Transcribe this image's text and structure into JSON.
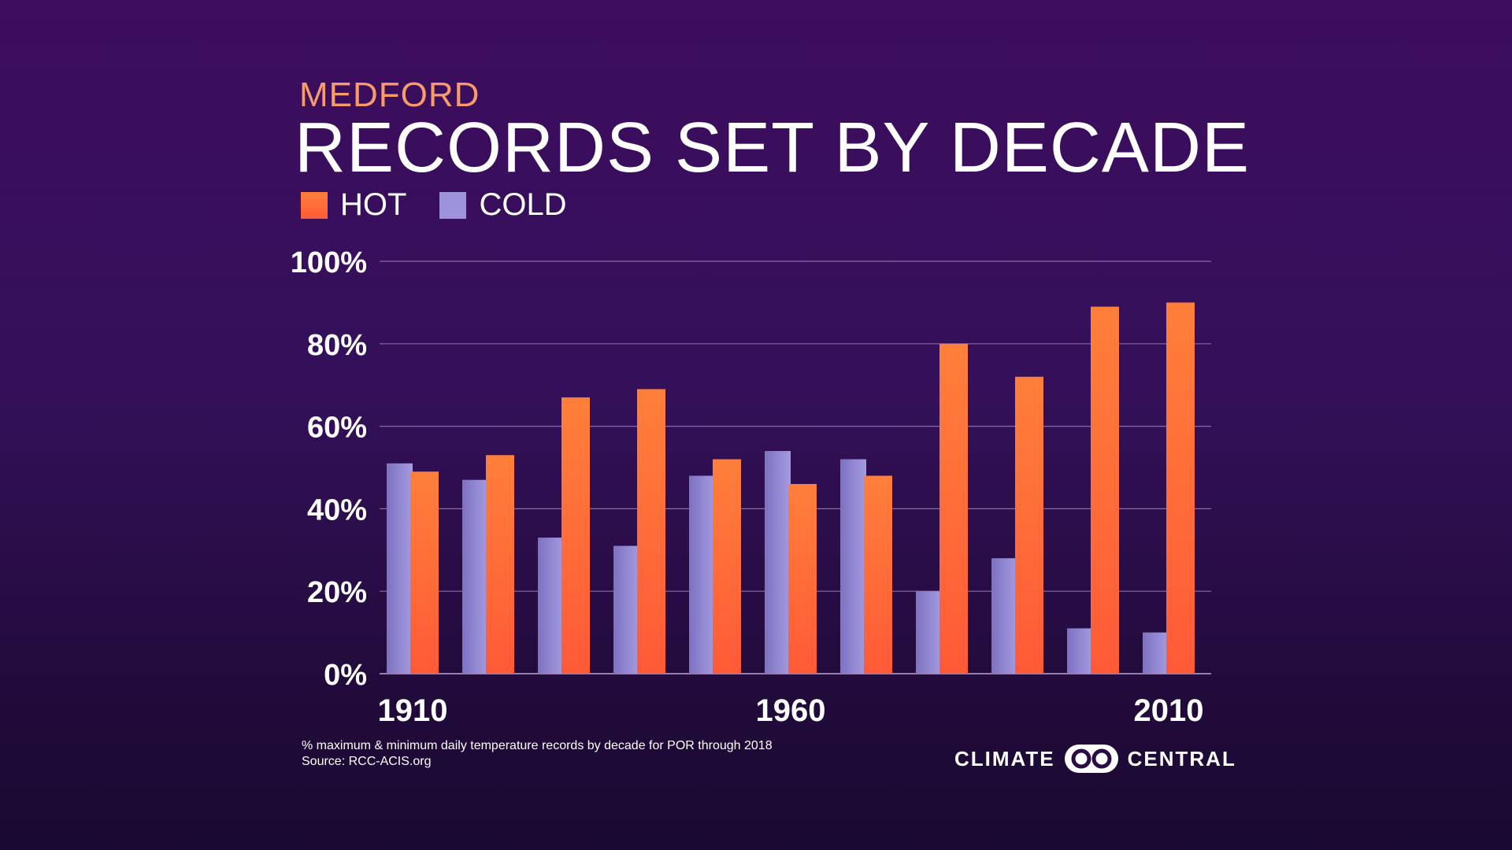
{
  "header": {
    "subtitle": "MEDFORD",
    "title": "RECORDS SET BY DECADE"
  },
  "legend": {
    "hot_label": "HOT",
    "cold_label": "COLD"
  },
  "footer": {
    "note": "% maximum & minimum daily temperature records by decade for POR through 2018",
    "source": "Source: RCC-ACIS.org",
    "brand_left": "CLIMATE",
    "brand_right": "CENTRAL"
  },
  "colors": {
    "hot": "#ff5a38",
    "hot_top": "#ff7f3a",
    "cold": "#9d93dd",
    "cold_dark": "#7d72c0",
    "subtitle": "#f79a6c",
    "grid": "#8b6aa8"
  },
  "chart_data": {
    "type": "bar",
    "title": "RECORDS SET BY DECADE",
    "subtitle": "MEDFORD",
    "categories": [
      "1910",
      "1920",
      "1930",
      "1940",
      "1950",
      "1960",
      "1970",
      "1980",
      "1990",
      "2000",
      "2010"
    ],
    "x_tick_labels": [
      "1910",
      "1960",
      "2010"
    ],
    "series": [
      {
        "name": "COLD",
        "values": [
          51,
          47,
          33,
          31,
          48,
          54,
          52,
          20,
          28,
          11,
          10
        ]
      },
      {
        "name": "HOT",
        "values": [
          49,
          53,
          67,
          69,
          52,
          46,
          48,
          80,
          72,
          89,
          90
        ]
      }
    ],
    "ylim": [
      0,
      100
    ],
    "y_ticks": [
      0,
      20,
      40,
      60,
      80,
      100
    ],
    "y_tick_labels": [
      "0%",
      "20%",
      "40%",
      "60%",
      "80%",
      "100%"
    ],
    "xlabel": "",
    "ylabel": "",
    "grid": true,
    "legend_position": "top-left"
  }
}
